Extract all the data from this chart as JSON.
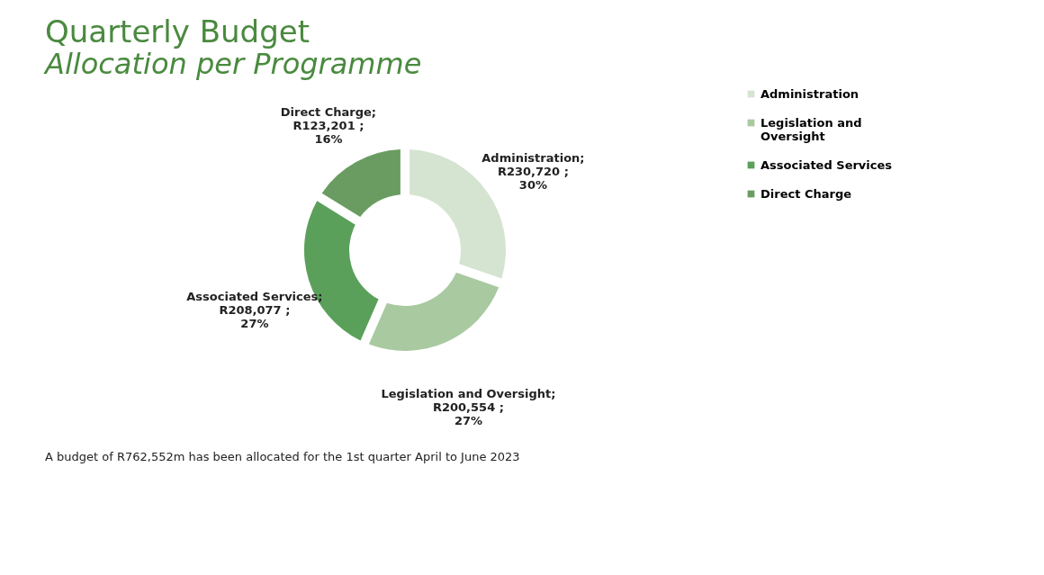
{
  "chart_data": {
    "type": "donut",
    "title": "Quarterly Budget",
    "subtitle": "Allocation per Programme",
    "categories": [
      "Administration",
      "Legislation and Oversight",
      "Associated Services",
      "Direct Charge"
    ],
    "values": [
      230720,
      200554,
      208077,
      123201
    ],
    "value_labels": [
      ";\nR230,720 ;\n30%",
      ";\nR200,554 ;\n27%",
      ";\nR208,077 ;\n27%",
      ";\nR123,201 ;\n16%"
    ],
    "colors": [
      "#d5e4d1",
      "#a9c9a0",
      "#5aa05a",
      "#6a9c62"
    ],
    "legend": "right",
    "annotations": [
      "A budget of R762,552m has been allocated for the 1st quarter April to June 2023"
    ]
  }
}
